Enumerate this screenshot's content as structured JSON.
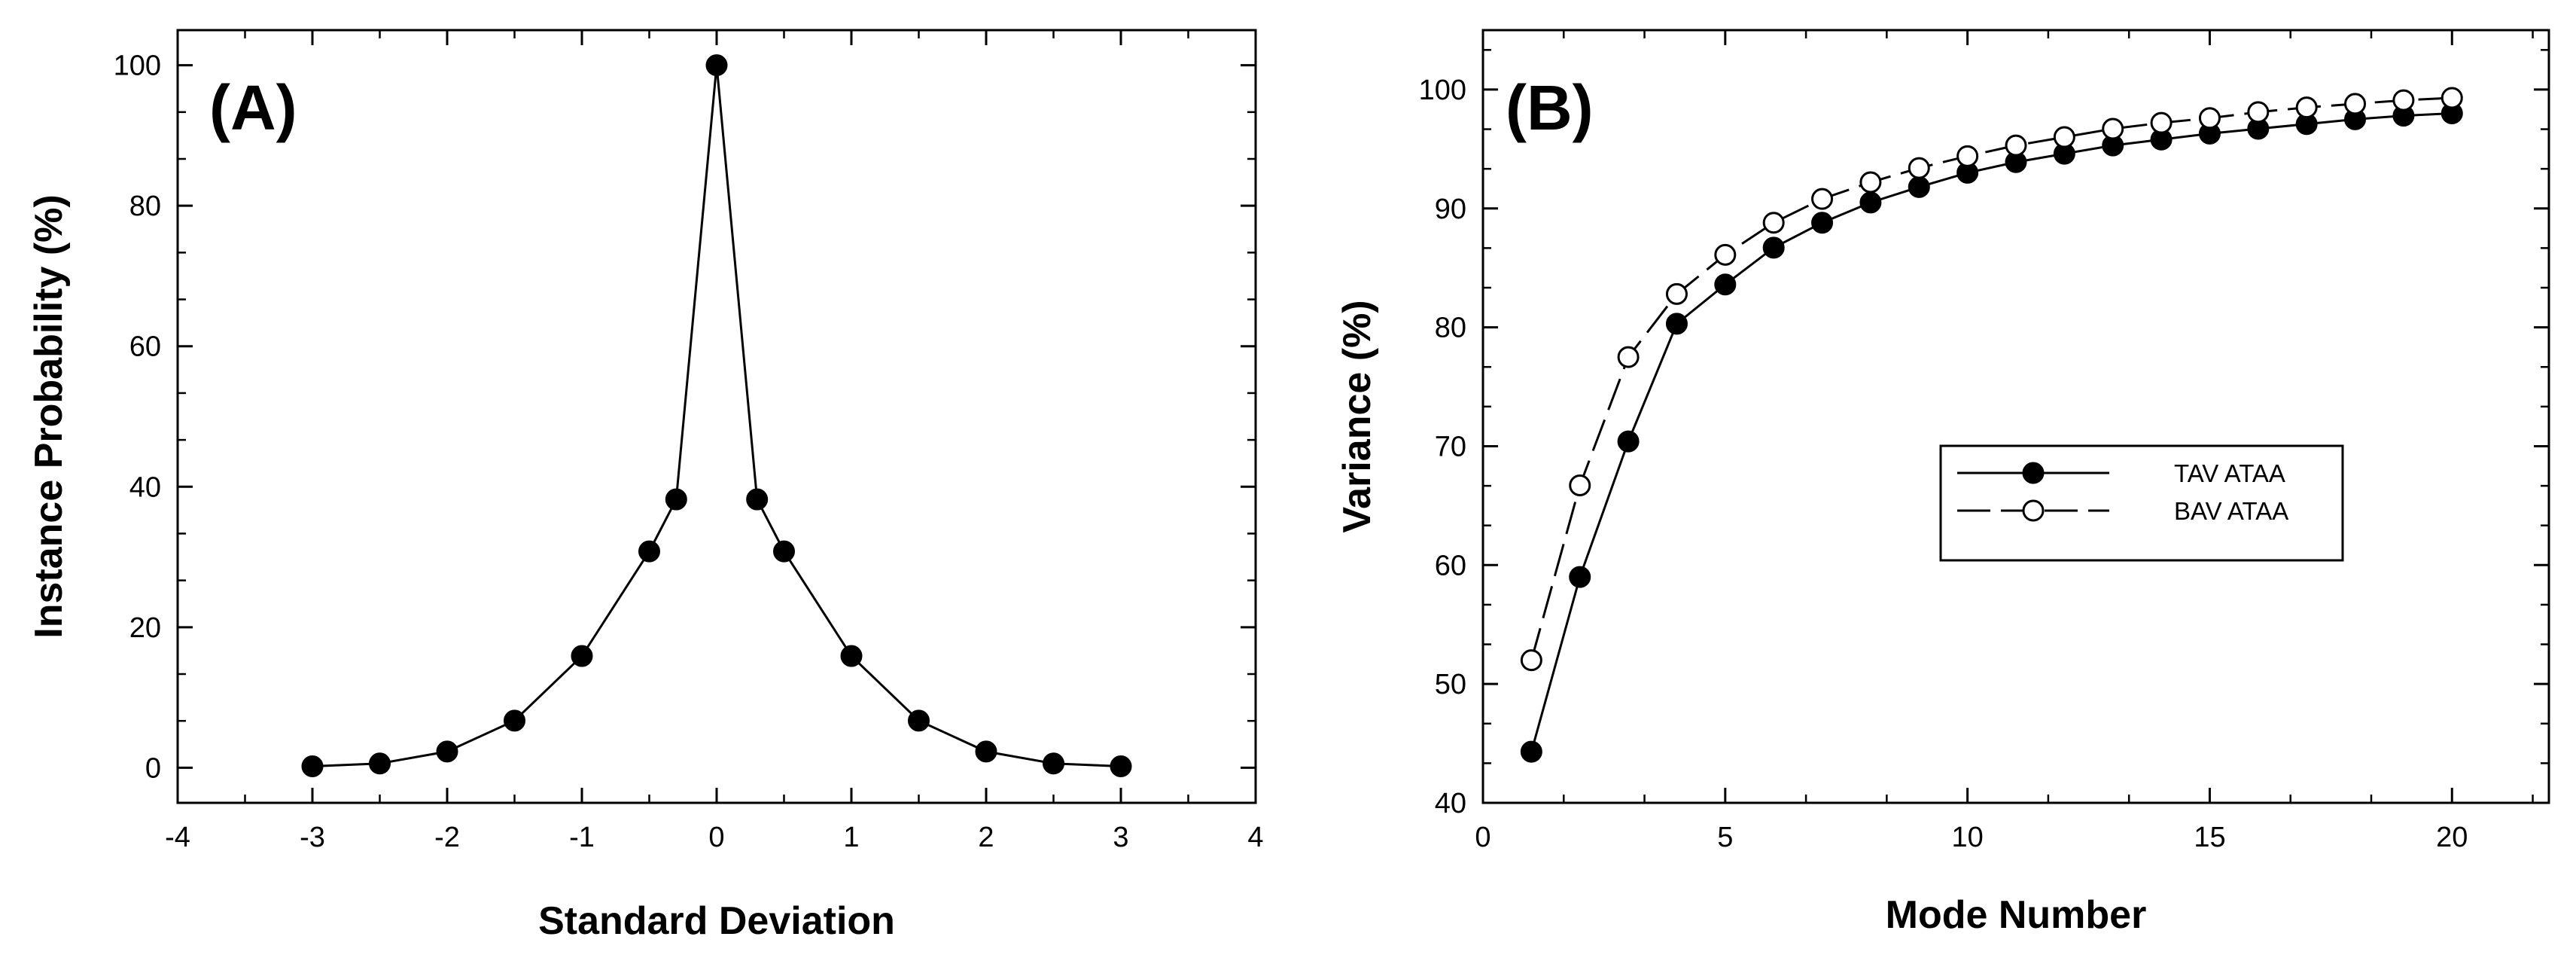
{
  "chart_data": [
    {
      "type": "line",
      "panel_label": "(A)",
      "title": "",
      "xlabel": "Standard Deviation",
      "ylabel": "Instance Probability (%)",
      "xlim": [
        -4,
        4
      ],
      "ylim": [
        -5,
        105
      ],
      "xticks": [
        -4,
        -3,
        -2,
        -1,
        0,
        1,
        2,
        3,
        4
      ],
      "xtick_labels": [
        "-4",
        "-3",
        "-2",
        "-1",
        "0",
        "1",
        "2",
        "3",
        "4"
      ],
      "yticks": [
        0,
        20,
        40,
        60,
        80,
        100
      ],
      "ytick_labels": [
        "0",
        "20",
        "40",
        "60",
        "80",
        "100"
      ],
      "grid": false,
      "series": [
        {
          "name": "Instance Probability",
          "marker": "filled-circle",
          "line": "solid",
          "x": [
            -3,
            -2.5,
            -2,
            -1.5,
            -1,
            -0.5,
            -0.3,
            0,
            0.3,
            0.5,
            1,
            1.5,
            2,
            2.5,
            3
          ],
          "y": [
            0.2,
            0.6,
            2.3,
            6.7,
            15.9,
            30.8,
            38.2,
            100,
            38.2,
            30.8,
            15.9,
            6.7,
            2.3,
            0.6,
            0.2
          ]
        }
      ]
    },
    {
      "type": "line",
      "panel_label": "(B)",
      "title": "",
      "xlabel": "Mode Number",
      "ylabel": "Variance (%)",
      "xlim": [
        0,
        22
      ],
      "ylim": [
        40,
        105
      ],
      "xticks": [
        0,
        5,
        10,
        15,
        20
      ],
      "xtick_labels": [
        "0",
        "5",
        "10",
        "15",
        "20"
      ],
      "yticks": [
        40,
        50,
        60,
        70,
        80,
        90,
        100
      ],
      "ytick_labels": [
        "40",
        "50",
        "60",
        "70",
        "80",
        "90",
        "100"
      ],
      "grid": false,
      "legend_position": "center-right",
      "series": [
        {
          "name": "TAV ATAA",
          "marker": "filled-circle",
          "line": "solid",
          "x": [
            1,
            2,
            3,
            4,
            5,
            6,
            7,
            8,
            9,
            10,
            11,
            12,
            13,
            14,
            15,
            16,
            17,
            18,
            19,
            20
          ],
          "y": [
            44.3,
            59,
            70.4,
            80.3,
            83.6,
            86.7,
            88.8,
            90.5,
            91.8,
            93,
            93.9,
            94.6,
            95.3,
            95.8,
            96.3,
            96.7,
            97.1,
            97.5,
            97.8,
            98
          ]
        },
        {
          "name": "BAV ATAA",
          "marker": "open-circle",
          "line": "dashed",
          "x": [
            1,
            2,
            3,
            4,
            5,
            6,
            7,
            8,
            9,
            10,
            11,
            12,
            13,
            14,
            15,
            16,
            17,
            18,
            19,
            20
          ],
          "y": [
            52,
            66.7,
            77.5,
            82.8,
            86.1,
            88.8,
            90.8,
            92.2,
            93.4,
            94.4,
            95.3,
            96,
            96.7,
            97.2,
            97.6,
            98.1,
            98.5,
            98.8,
            99.1,
            99.3
          ]
        }
      ]
    }
  ]
}
